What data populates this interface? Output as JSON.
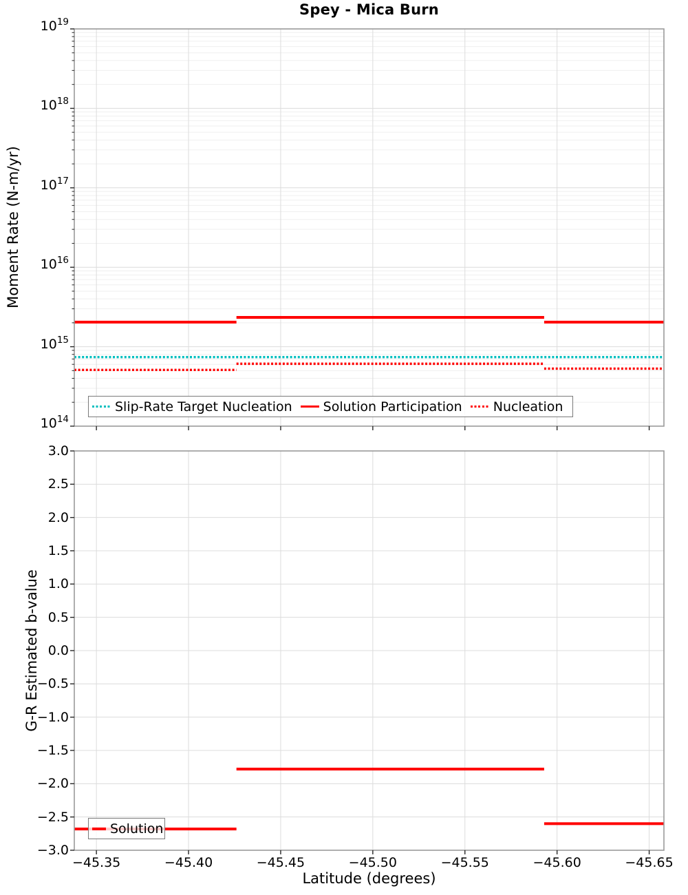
{
  "title": "Spey - Mica Burn",
  "colors": {
    "solution": "#ff0000",
    "slip_rate_target": "#00bfbf",
    "nucleation": "#ff0000",
    "grid_major": "#dcdcdc",
    "grid_minor": "#efefef",
    "spine": "#999999",
    "tick": "#262626",
    "legend_border": "#7a7a7a"
  },
  "chart_data": [
    {
      "type": "line",
      "title": "Spey - Mica Burn",
      "ylabel": "Moment Rate (N-m/yr)",
      "yscale": "log",
      "ylim": [
        100000000000000.0,
        1e+19
      ],
      "y_tick_exponents": [
        19,
        18,
        17,
        16,
        15,
        14
      ],
      "xlim": [
        -45.338,
        -45.658
      ],
      "x_axis_inverted": true,
      "x_ticks": [
        -45.35,
        -45.4,
        -45.45,
        -45.5,
        -45.55,
        -45.6,
        -45.65
      ],
      "show_x_tick_labels": false,
      "grid": true,
      "legend": {
        "position": "lower-left-inside",
        "entries": [
          "Slip-Rate Target Nucleation",
          "Solution Participation",
          "Nucleation"
        ]
      },
      "series": [
        {
          "name": "Slip-Rate Target Nucleation",
          "color": "#00bfbf",
          "line_style": "dotted",
          "step_x": [
            -45.338,
            -45.658
          ],
          "step_y": [
            740000000000000.0
          ]
        },
        {
          "name": "Solution Participation",
          "color": "#ff0000",
          "line_style": "solid",
          "step_x": [
            -45.338,
            -45.426,
            -45.593,
            -45.658
          ],
          "step_y": [
            2040000000000000.0,
            2340000000000000.0,
            2040000000000000.0
          ]
        },
        {
          "name": "Nucleation",
          "color": "#ff0000",
          "line_style": "dotted",
          "step_x": [
            -45.338,
            -45.426,
            -45.593,
            -45.658
          ],
          "step_y": [
            510000000000000.0,
            610000000000000.0,
            530000000000000.0
          ]
        }
      ]
    },
    {
      "type": "line",
      "ylabel": "G-R Estimated b-value",
      "xlabel": "Latitude (degrees)",
      "yscale": "linear",
      "ylim": [
        -3.0,
        3.0
      ],
      "y_ticks": [
        3.0,
        2.5,
        2.0,
        1.5,
        1.0,
        0.5,
        0.0,
        -0.5,
        -1.0,
        -1.5,
        -2.0,
        -2.5,
        -3.0
      ],
      "xlim": [
        -45.338,
        -45.658
      ],
      "x_axis_inverted": true,
      "x_ticks": [
        -45.35,
        -45.4,
        -45.45,
        -45.5,
        -45.55,
        -45.6,
        -45.65
      ],
      "show_x_tick_labels": true,
      "grid": true,
      "legend": {
        "position": "lower-left-inside",
        "entries": [
          "Solution"
        ]
      },
      "series": [
        {
          "name": "Solution",
          "color": "#ff0000",
          "line_style": "solid",
          "step_x": [
            -45.338,
            -45.426,
            -45.593,
            -45.658
          ],
          "step_y": [
            -2.68,
            -1.78,
            -2.6
          ]
        }
      ]
    }
  ]
}
